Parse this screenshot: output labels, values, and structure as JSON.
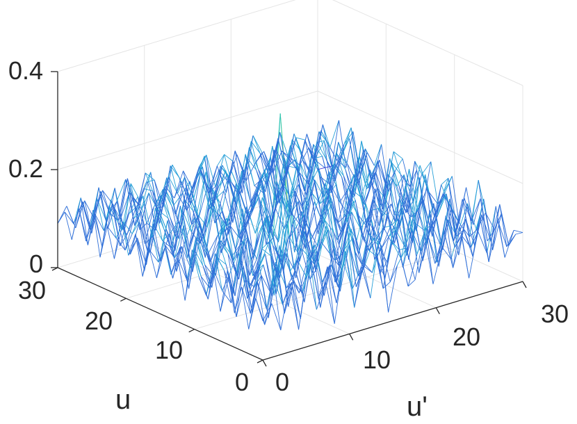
{
  "chart_data": {
    "type": "mesh",
    "title": "",
    "xlabel": "u'",
    "ylabel": "u",
    "zlabel": "",
    "xlim": [
      0,
      30
    ],
    "ylim": [
      0,
      30
    ],
    "zlim": [
      0,
      0.4
    ],
    "xticks": [
      "0",
      "10",
      "20",
      "30"
    ],
    "yticks": [
      "0",
      "10",
      "20",
      "30"
    ],
    "zticks": [
      "0",
      "0.2",
      "0.4"
    ],
    "grid": true,
    "view": "isometric",
    "colormap": [
      "#3b3bd4",
      "#2f6fd8",
      "#27a0d8",
      "#2cc4b4",
      "#7fd06a",
      "#f0e020"
    ],
    "grid_size": 30,
    "z_matrix": [
      [
        0.08,
        0.11,
        0.05,
        0.14,
        0.04,
        0.16,
        0.07,
        0.12,
        0.03,
        0.15,
        0.09,
        0.13,
        0.06,
        0.18,
        0.02,
        0.11,
        0.14,
        0.07,
        0.16,
        0.05,
        0.12,
        0.09,
        0.15,
        0.04,
        0.13,
        0.08,
        0.17,
        0.06,
        0.11,
        0.1
      ],
      [
        0.12,
        0.06,
        0.15,
        0.09,
        0.13,
        0.05,
        0.18,
        0.08,
        0.14,
        0.06,
        0.16,
        0.04,
        0.12,
        0.1,
        0.15,
        0.07,
        0.13,
        0.05,
        0.11,
        0.16,
        0.08,
        0.14,
        0.06,
        0.12,
        0.09,
        0.15,
        0.05,
        0.13,
        0.07,
        0.09
      ],
      [
        0.05,
        0.14,
        0.08,
        0.17,
        0.06,
        0.12,
        0.09,
        0.15,
        0.05,
        0.13,
        0.08,
        0.2,
        0.07,
        0.11,
        0.16,
        0.05,
        0.14,
        0.1,
        0.18,
        0.06,
        0.13,
        0.07,
        0.16,
        0.09,
        0.12,
        0.06,
        0.14,
        0.08,
        0.15,
        0.06
      ],
      [
        0.13,
        0.07,
        0.16,
        0.05,
        0.15,
        0.1,
        0.13,
        0.06,
        0.17,
        0.09,
        0.12,
        0.06,
        0.15,
        0.08,
        0.13,
        0.11,
        0.06,
        0.16,
        0.07,
        0.14,
        0.09,
        0.17,
        0.05,
        0.14,
        0.1,
        0.13,
        0.07,
        0.16,
        0.05,
        0.12
      ],
      [
        0.07,
        0.16,
        0.06,
        0.13,
        0.09,
        0.18,
        0.05,
        0.14,
        0.1,
        0.16,
        0.05,
        0.14,
        0.09,
        0.17,
        0.06,
        0.15,
        0.12,
        0.08,
        0.14,
        0.1,
        0.16,
        0.06,
        0.13,
        0.08,
        0.17,
        0.05,
        0.15,
        0.09,
        0.12,
        0.08
      ],
      [
        0.15,
        0.05,
        0.12,
        0.1,
        0.14,
        0.07,
        0.16,
        0.11,
        0.06,
        0.13,
        0.1,
        0.18,
        0.06,
        0.12,
        0.14,
        0.08,
        0.17,
        0.05,
        0.12,
        0.15,
        0.07,
        0.13,
        0.11,
        0.16,
        0.06,
        0.14,
        0.1,
        0.07,
        0.18,
        0.05
      ],
      [
        0.06,
        0.13,
        0.17,
        0.07,
        0.12,
        0.15,
        0.06,
        0.19,
        0.08,
        0.14,
        0.07,
        0.12,
        0.16,
        0.05,
        0.18,
        0.1,
        0.06,
        0.14,
        0.09,
        0.13,
        0.18,
        0.05,
        0.15,
        0.07,
        0.13,
        0.16,
        0.06,
        0.14,
        0.09,
        0.13
      ],
      [
        0.14,
        0.09,
        0.06,
        0.15,
        0.08,
        0.11,
        0.22,
        0.05,
        0.13,
        0.09,
        0.17,
        0.07,
        0.13,
        0.1,
        0.07,
        0.15,
        0.11,
        0.18,
        0.06,
        0.12,
        0.08,
        0.15,
        0.09,
        0.2,
        0.08,
        0.11,
        0.15,
        0.06,
        0.13,
        0.07
      ],
      [
        0.08,
        0.16,
        0.12,
        0.07,
        0.17,
        0.05,
        0.11,
        0.15,
        0.07,
        0.18,
        0.06,
        0.15,
        0.08,
        0.17,
        0.12,
        0.06,
        0.16,
        0.07,
        0.14,
        0.09,
        0.16,
        0.07,
        0.13,
        0.06,
        0.15,
        0.08,
        0.12,
        0.17,
        0.06,
        0.14
      ],
      [
        0.11,
        0.06,
        0.14,
        0.12,
        0.05,
        0.16,
        0.08,
        0.13,
        0.11,
        0.06,
        0.14,
        0.1,
        0.19,
        0.05,
        0.15,
        0.12,
        0.07,
        0.15,
        0.11,
        0.06,
        0.14,
        0.12,
        0.08,
        0.17,
        0.1,
        0.13,
        0.05,
        0.15,
        0.1,
        0.06
      ],
      [
        0.16,
        0.1,
        0.07,
        0.16,
        0.13,
        0.08,
        0.17,
        0.06,
        0.16,
        0.12,
        0.08,
        0.2,
        0.07,
        0.13,
        0.09,
        0.17,
        0.05,
        0.12,
        0.16,
        0.08,
        0.13,
        0.06,
        0.18,
        0.09,
        0.14,
        0.06,
        0.17,
        0.08,
        0.12,
        0.15
      ],
      [
        0.05,
        0.15,
        0.11,
        0.06,
        0.15,
        0.12,
        0.06,
        0.14,
        0.09,
        0.17,
        0.11,
        0.05,
        0.14,
        0.16,
        0.06,
        0.13,
        0.19,
        0.08,
        0.11,
        0.15,
        0.06,
        0.14,
        0.1,
        0.12,
        0.07,
        0.18,
        0.09,
        0.13,
        0.07,
        0.11
      ],
      [
        0.13,
        0.08,
        0.16,
        0.1,
        0.07,
        0.18,
        0.1,
        0.12,
        0.05,
        0.13,
        0.16,
        0.08,
        0.25,
        0.07,
        0.14,
        0.09,
        0.12,
        0.16,
        0.06,
        0.17,
        0.11,
        0.08,
        0.15,
        0.06,
        0.16,
        0.1,
        0.07,
        0.17,
        0.11,
        0.08
      ],
      [
        0.09,
        0.14,
        0.05,
        0.15,
        0.11,
        0.06,
        0.15,
        0.08,
        0.18,
        0.07,
        0.12,
        0.15,
        0.09,
        0.17,
        0.11,
        0.06,
        0.15,
        0.1,
        0.14,
        0.07,
        0.13,
        0.17,
        0.05,
        0.14,
        0.11,
        0.06,
        0.15,
        0.09,
        0.14,
        0.16
      ],
      [
        0.15,
        0.07,
        0.13,
        0.08,
        0.17,
        0.1,
        0.13,
        0.16,
        0.09,
        0.14,
        0.06,
        0.18,
        0.11,
        0.34,
        0.08,
        0.15,
        0.07,
        0.13,
        0.17,
        0.1,
        0.06,
        0.14,
        0.12,
        0.17,
        0.05,
        0.15,
        0.12,
        0.06,
        0.16,
        0.07
      ],
      [
        0.07,
        0.13,
        0.1,
        0.16,
        0.06,
        0.14,
        0.07,
        0.11,
        0.15,
        0.06,
        0.16,
        0.1,
        0.14,
        0.08,
        0.16,
        0.12,
        0.09,
        0.17,
        0.06,
        0.13,
        0.15,
        0.08,
        0.16,
        0.09,
        0.13,
        0.08,
        0.17,
        0.11,
        0.05,
        0.13
      ],
      [
        0.12,
        0.09,
        0.17,
        0.06,
        0.12,
        0.16,
        0.1,
        0.18,
        0.07,
        0.12,
        0.09,
        0.14,
        0.17,
        0.06,
        0.13,
        0.08,
        0.16,
        0.05,
        0.14,
        0.11,
        0.17,
        0.06,
        0.12,
        0.15,
        0.08,
        0.14,
        0.06,
        0.15,
        0.12,
        0.09
      ],
      [
        0.06,
        0.15,
        0.08,
        0.13,
        0.15,
        0.07,
        0.13,
        0.06,
        0.16,
        0.1,
        0.15,
        0.07,
        0.12,
        0.15,
        0.07,
        0.17,
        0.11,
        0.14,
        0.09,
        0.16,
        0.07,
        0.13,
        0.09,
        0.06,
        0.17,
        0.1,
        0.13,
        0.07,
        0.16,
        0.14
      ],
      [
        0.14,
        0.06,
        0.15,
        0.11,
        0.09,
        0.17,
        0.08,
        0.14,
        0.11,
        0.18,
        0.06,
        0.16,
        0.08,
        0.12,
        0.18,
        0.06,
        0.14,
        0.08,
        0.18,
        0.05,
        0.14,
        0.1,
        0.16,
        0.13,
        0.06,
        0.16,
        0.09,
        0.14,
        0.08,
        0.11
      ],
      [
        0.09,
        0.12,
        0.06,
        0.17,
        0.12,
        0.06,
        0.15,
        0.1,
        0.07,
        0.14,
        0.12,
        0.09,
        0.17,
        0.07,
        0.11,
        0.15,
        0.06,
        0.16,
        0.11,
        0.13,
        0.08,
        0.17,
        0.05,
        0.15,
        0.12,
        0.07,
        0.18,
        0.1,
        0.13,
        0.06
      ],
      [
        0.16,
        0.08,
        0.14,
        0.07,
        0.16,
        0.11,
        0.06,
        0.16,
        0.13,
        0.08,
        0.17,
        0.13,
        0.06,
        0.15,
        0.09,
        0.13,
        0.17,
        0.07,
        0.13,
        0.06,
        0.16,
        0.11,
        0.14,
        0.08,
        0.16,
        0.12,
        0.06,
        0.15,
        0.07,
        0.15
      ],
      [
        0.07,
        0.14,
        0.11,
        0.15,
        0.06,
        0.14,
        0.12,
        0.07,
        0.17,
        0.12,
        0.06,
        0.15,
        0.1,
        0.18,
        0.13,
        0.07,
        0.12,
        0.15,
        0.09,
        0.17,
        0.1,
        0.06,
        0.16,
        0.11,
        0.09,
        0.17,
        0.12,
        0.08,
        0.14,
        0.1
      ],
      [
        0.13,
        0.1,
        0.07,
        0.13,
        0.17,
        0.08,
        0.16,
        0.11,
        0.06,
        0.15,
        0.1,
        0.18,
        0.07,
        0.13,
        0.06,
        0.16,
        0.09,
        0.13,
        0.16,
        0.07,
        0.14,
        0.15,
        0.08,
        0.17,
        0.14,
        0.06,
        0.13,
        0.16,
        0.06,
        0.12
      ],
      [
        0.06,
        0.16,
        0.12,
        0.09,
        0.14,
        0.06,
        0.13,
        0.16,
        0.12,
        0.07,
        0.16,
        0.08,
        0.14,
        0.11,
        0.16,
        0.09,
        0.15,
        0.06,
        0.12,
        0.16,
        0.06,
        0.13,
        0.12,
        0.06,
        0.13,
        0.16,
        0.09,
        0.12,
        0.17,
        0.07
      ],
      [
        0.15,
        0.07,
        0.16,
        0.06,
        0.12,
        0.15,
        0.09,
        0.07,
        0.15,
        0.11,
        0.13,
        0.06,
        0.16,
        0.08,
        0.12,
        0.14,
        0.07,
        0.17,
        0.1,
        0.08,
        0.17,
        0.09,
        0.16,
        0.1,
        0.07,
        0.15,
        0.11,
        0.06,
        0.13,
        0.15
      ],
      [
        0.08,
        0.13,
        0.09,
        0.14,
        0.08,
        0.17,
        0.07,
        0.14,
        0.1,
        0.16,
        0.08,
        0.15,
        0.1,
        0.16,
        0.07,
        0.15,
        0.12,
        0.08,
        0.15,
        0.12,
        0.07,
        0.15,
        0.06,
        0.16,
        0.13,
        0.08,
        0.16,
        0.13,
        0.09,
        0.07
      ],
      [
        0.14,
        0.06,
        0.15,
        0.1,
        0.16,
        0.07,
        0.13,
        0.1,
        0.17,
        0.06,
        0.15,
        0.11,
        0.07,
        0.13,
        0.17,
        0.06,
        0.14,
        0.1,
        0.07,
        0.16,
        0.11,
        0.07,
        0.14,
        0.09,
        0.16,
        0.1,
        0.07,
        0.15,
        0.11,
        0.16
      ],
      [
        0.07,
        0.15,
        0.08,
        0.16,
        0.07,
        0.12,
        0.16,
        0.06,
        0.13,
        0.12,
        0.07,
        0.16,
        0.13,
        0.08,
        0.12,
        0.16,
        0.09,
        0.15,
        0.13,
        0.06,
        0.16,
        0.13,
        0.08,
        0.15,
        0.07,
        0.14,
        0.13,
        0.08,
        0.15,
        0.06
      ],
      [
        0.12,
        0.09,
        0.13,
        0.06,
        0.14,
        0.09,
        0.07,
        0.15,
        0.08,
        0.15,
        0.13,
        0.07,
        0.15,
        0.11,
        0.06,
        0.13,
        0.07,
        0.12,
        0.06,
        0.14,
        0.09,
        0.16,
        0.12,
        0.07,
        0.15,
        0.09,
        0.06,
        0.13,
        0.07,
        0.05
      ],
      [
        0.09,
        0.12,
        0.07,
        0.12,
        0.08,
        0.13,
        0.1,
        0.06,
        0.11,
        0.08,
        0.12,
        0.06,
        0.1,
        0.07,
        0.12,
        0.08,
        0.11,
        0.06,
        0.1,
        0.07,
        0.12,
        0.06,
        0.09,
        0.11,
        0.06,
        0.1,
        0.08,
        0.06,
        0.09,
        0.04
      ]
    ]
  }
}
